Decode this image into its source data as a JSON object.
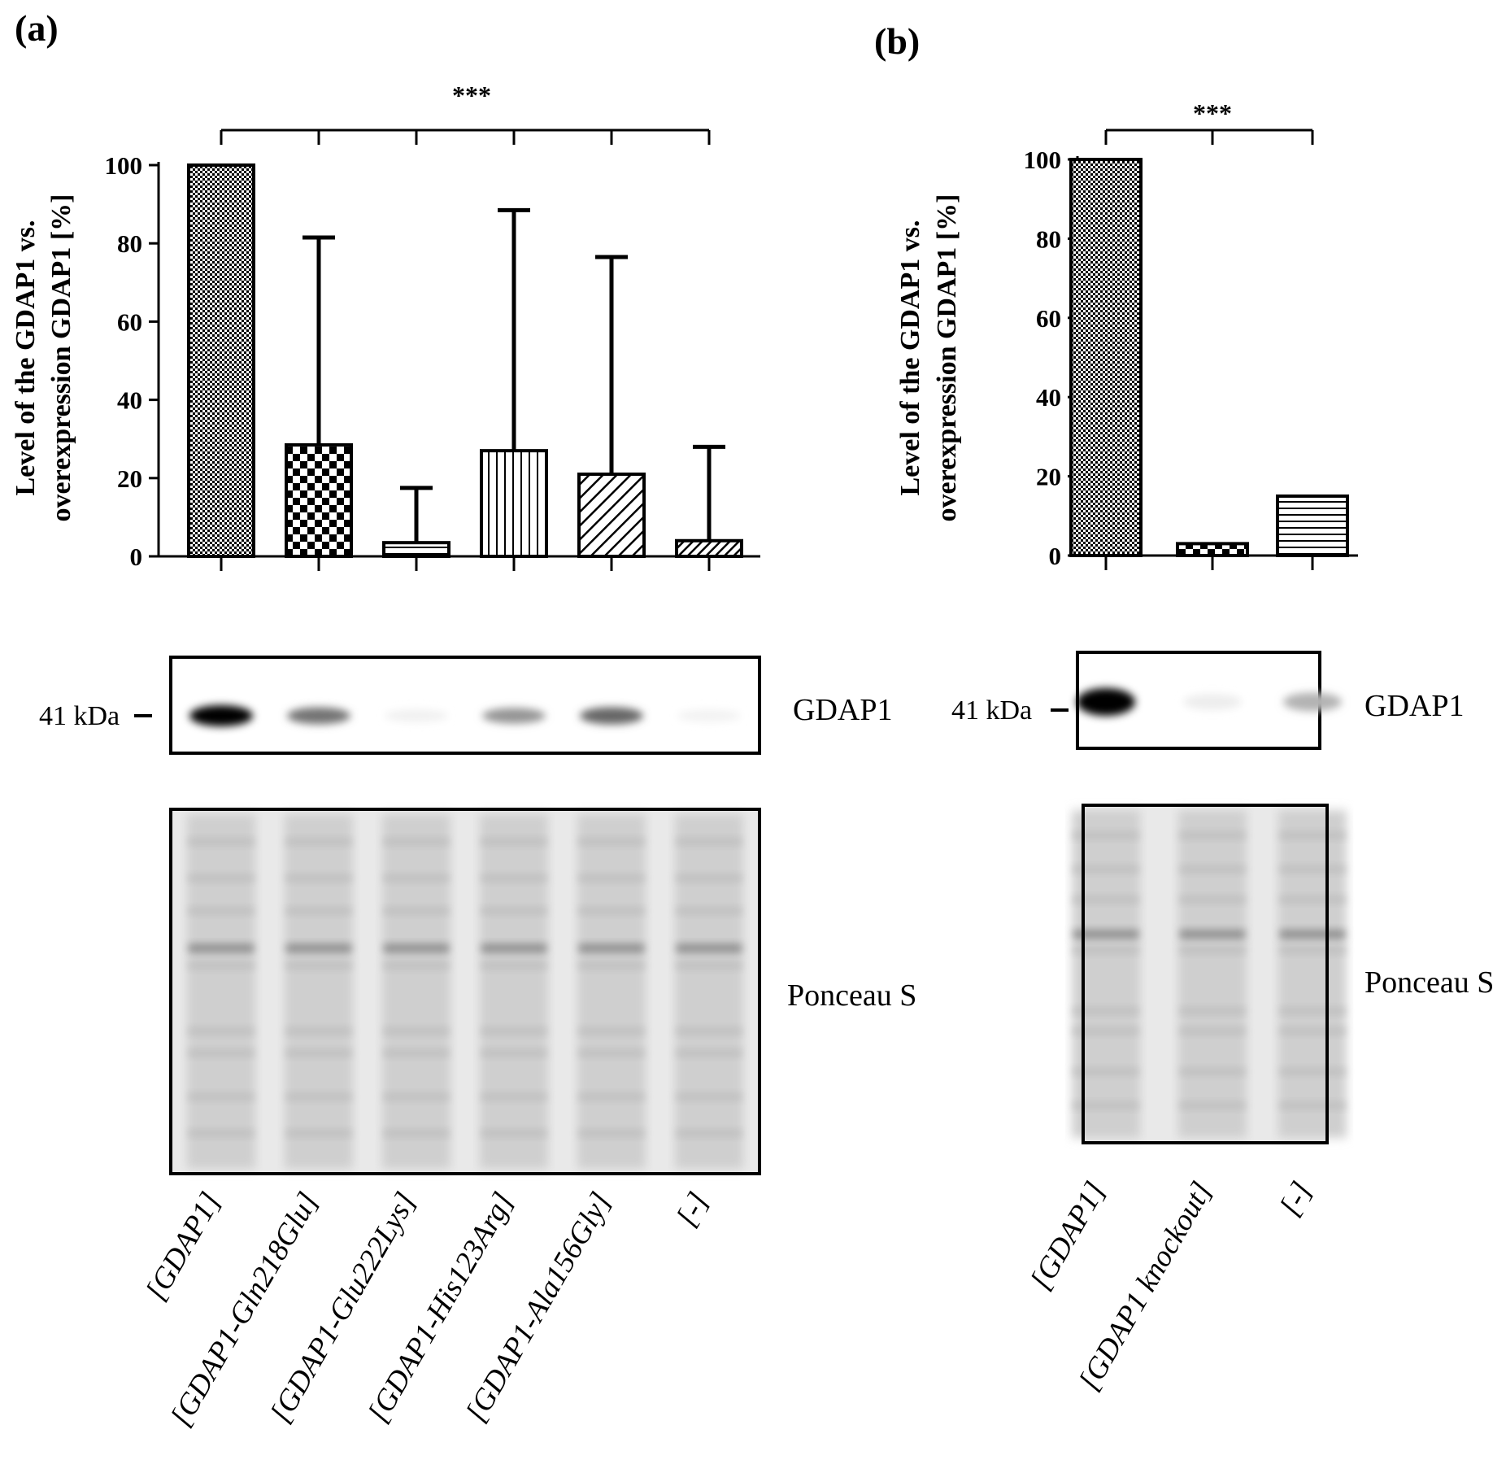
{
  "panels": [
    {
      "label": "(a)",
      "chart_data": {
        "type": "bar",
        "ylabel_lines": [
          "Level of the GDAP1 vs.",
          "overexpression GDAP1 [%]"
        ],
        "ylim": [
          0,
          100
        ],
        "yticks": [
          0,
          20,
          40,
          60,
          80,
          100
        ],
        "grid": false,
        "categories": [
          "[GDAP1]",
          "[GDAP1-Gln218Glu]",
          "[GDAP1-Glu222Lys]",
          "[GDAP1-His123Arg]",
          "[GDAP1-Ala156Gly]",
          "[-]"
        ],
        "values": [
          100,
          28.5,
          3.5,
          27,
          21,
          4
        ],
        "error_upper": [
          100,
          81.5,
          17.5,
          88.5,
          76.5,
          28
        ],
        "patterns": [
          "dense-dots",
          "checker",
          "horizontal",
          "vertical",
          "diagonal",
          "diagonal-fine"
        ],
        "significance": "***"
      },
      "blot": {
        "kda": "41 kDa",
        "protein": "GDAP1",
        "band_intensity": [
          1.0,
          0.55,
          0.06,
          0.42,
          0.6,
          0.05
        ],
        "stain": "Ponceau S"
      }
    },
    {
      "label": "(b)",
      "chart_data": {
        "type": "bar",
        "ylabel_lines": [
          "Level of the GDAP1 vs.",
          "overexpression GDAP1 [%]"
        ],
        "ylim": [
          0,
          100
        ],
        "yticks": [
          0,
          20,
          40,
          60,
          80,
          100
        ],
        "grid": false,
        "categories": [
          "[GDAP1]",
          "[GDAP1 knockout]",
          "[-]"
        ],
        "values": [
          100,
          3,
          15
        ],
        "error_upper": [
          100,
          3,
          15
        ],
        "patterns": [
          "dense-dots",
          "checker",
          "horizontal"
        ],
        "significance": "***"
      },
      "blot": {
        "kda": "41 kDa",
        "protein": "GDAP1",
        "band_intensity": [
          1.0,
          0.07,
          0.3
        ],
        "stain": "Ponceau S"
      }
    }
  ]
}
